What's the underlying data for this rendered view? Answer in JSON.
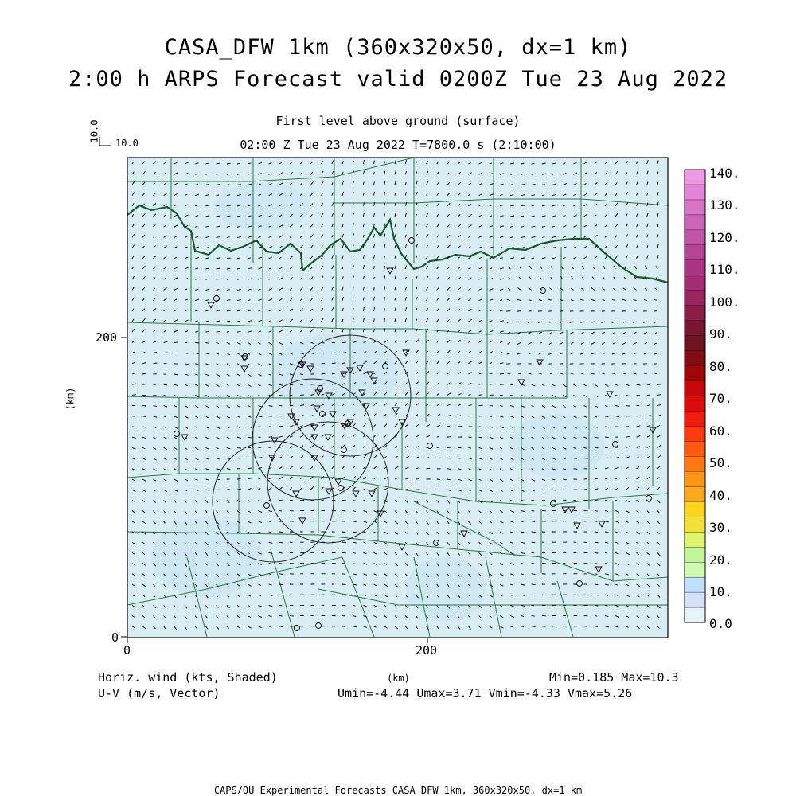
{
  "title_line1": "CASA_DFW 1km (360x320x50, dx=1 km)",
  "title_line2": "2:00 h ARPS Forecast valid 0200Z Tue 23 Aug 2022",
  "level_label": "First level above ground (surface)",
  "time_label": "02:00 Z Tue 23 Aug 2022   T=7800.0 s (2:10:00)",
  "ref_vector": {
    "x_label": "10.0",
    "y_label": "10.0"
  },
  "axes": {
    "x_ticks": [
      {
        "value": 0,
        "label": "0"
      },
      {
        "value": 200,
        "label": "200"
      }
    ],
    "y_ticks": [
      {
        "value": 0,
        "label": "0"
      },
      {
        "value": 200,
        "label": "200"
      }
    ],
    "x_unit": "(km)",
    "y_unit": "(km)",
    "x_range": [
      0,
      360
    ],
    "y_range": [
      0,
      320
    ]
  },
  "colorbar": {
    "labels": [
      "140.",
      "130.",
      "120.",
      "110.",
      "100.",
      "90.",
      "80.",
      "70.",
      "60.",
      "50.",
      "40.",
      "30.",
      "20.",
      "10.",
      "0.0"
    ],
    "values": [
      140,
      130,
      120,
      110,
      100,
      90,
      80,
      70,
      60,
      50,
      40,
      30,
      20,
      10,
      0
    ],
    "bin_colors": [
      "#e6f4fa",
      "#d4e1f9",
      "#bfe0ff",
      "#cffab0",
      "#c0f59a",
      "#e0f56e",
      "#f0e038",
      "#fcd41c",
      "#fca81c",
      "#fc9614",
      "#fc7810",
      "#fc5a10",
      "#fc3a10",
      "#f01c10",
      "#dc0c0c",
      "#c80808",
      "#a00808",
      "#820c14",
      "#6c1420",
      "#781630",
      "#8c1c48",
      "#982460",
      "#a42c74",
      "#ac3484",
      "#b44494",
      "#c054a6",
      "#cc64b8",
      "#d874c8",
      "#e484d8",
      "#f098e4"
    ]
  },
  "field_info": {
    "left_line1": "Horiz. wind (kts, Shaded)",
    "left_line2": "U-V (m/s, Vector)",
    "xunit_bottom": "(km)",
    "stats_line1": "Min=0.185 Max=10.3",
    "stats_line2": "Umin=-4.44 Umax=3.71 Vmin=-4.33 Vmax=5.26"
  },
  "footer": "CAPS/OU Experimental Forecasts  CASA DFW 1km, 360x320x50, dx=1 km",
  "colors": {
    "field_fill": "#d9eef4",
    "county_lines": "#2a7a3a",
    "state_border": "#1a5a28",
    "vector": "#000000"
  }
}
